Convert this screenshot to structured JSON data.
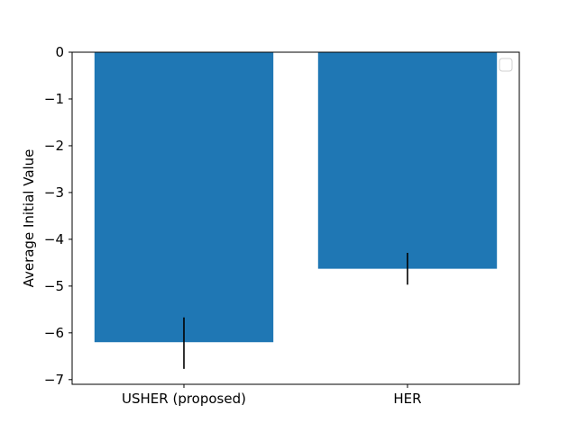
{
  "chart_data": {
    "type": "bar",
    "title": "",
    "xlabel": "",
    "ylabel": "Average Initial Value",
    "categories": [
      "USHER (proposed)",
      "HER"
    ],
    "values": [
      -6.2,
      -4.63
    ],
    "error_bars": [
      {
        "low": -6.77,
        "high": -5.67
      },
      {
        "low": -4.97,
        "high": -4.29
      }
    ],
    "ylim": [
      -7.1,
      0.0
    ],
    "yticks": [
      0,
      -1,
      -2,
      -3,
      -4,
      -5,
      -6,
      -7
    ],
    "ytick_labels": [
      "0",
      "−1",
      "−2",
      "−3",
      "−4",
      "−5",
      "−6",
      "−7"
    ],
    "grid": false,
    "legend": {
      "placement": "top-right",
      "entries": []
    },
    "colors": {
      "bar": "#1f77b4",
      "error_bar": "#000000",
      "axes": "#000000"
    }
  }
}
